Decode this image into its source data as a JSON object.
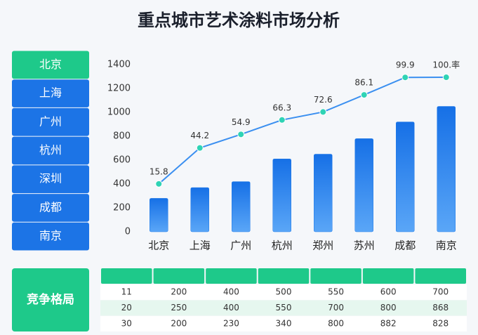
{
  "title": "重点城市艺术涂料市场分析",
  "menu": {
    "items": [
      "北京",
      "上海",
      "广州",
      "杭州",
      "深圳",
      "成都",
      "南京"
    ],
    "active": 0
  },
  "chart_data": {
    "type": "bar",
    "categories": [
      "北京",
      "上海",
      "广州",
      "杭州",
      "郑州",
      "苏州",
      "成都",
      "南京"
    ],
    "series": [
      {
        "type": "bar",
        "color": "#1f7ae8",
        "values": [
          280,
          370,
          420,
          610,
          650,
          780,
          920,
          1050
        ]
      },
      {
        "type": "line",
        "axis": "y2",
        "color": "#3a8ff0",
        "point_color": "#2fd3b5",
        "values": [
          15.8,
          44.2,
          54.9,
          66.3,
          72.6,
          86.1,
          99.9,
          100
        ],
        "value_labels": [
          "15.8",
          "44.2",
          "54.9",
          "66.3",
          "72.6",
          "86.1",
          "99.9",
          "100.率"
        ]
      }
    ],
    "ylim": [
      0,
      1400
    ],
    "yticks": [
      0,
      200,
      400,
      600,
      800,
      1000,
      1200,
      1400
    ],
    "y2lim": [
      -22,
      110
    ],
    "grid": false
  },
  "table": {
    "label": "竞争格局",
    "rows": [
      [
        11,
        200,
        400,
        500,
        550,
        600,
        700
      ],
      [
        20,
        250,
        400,
        550,
        700,
        800,
        868
      ],
      [
        30,
        200,
        230,
        340,
        800,
        882,
        828
      ]
    ]
  }
}
